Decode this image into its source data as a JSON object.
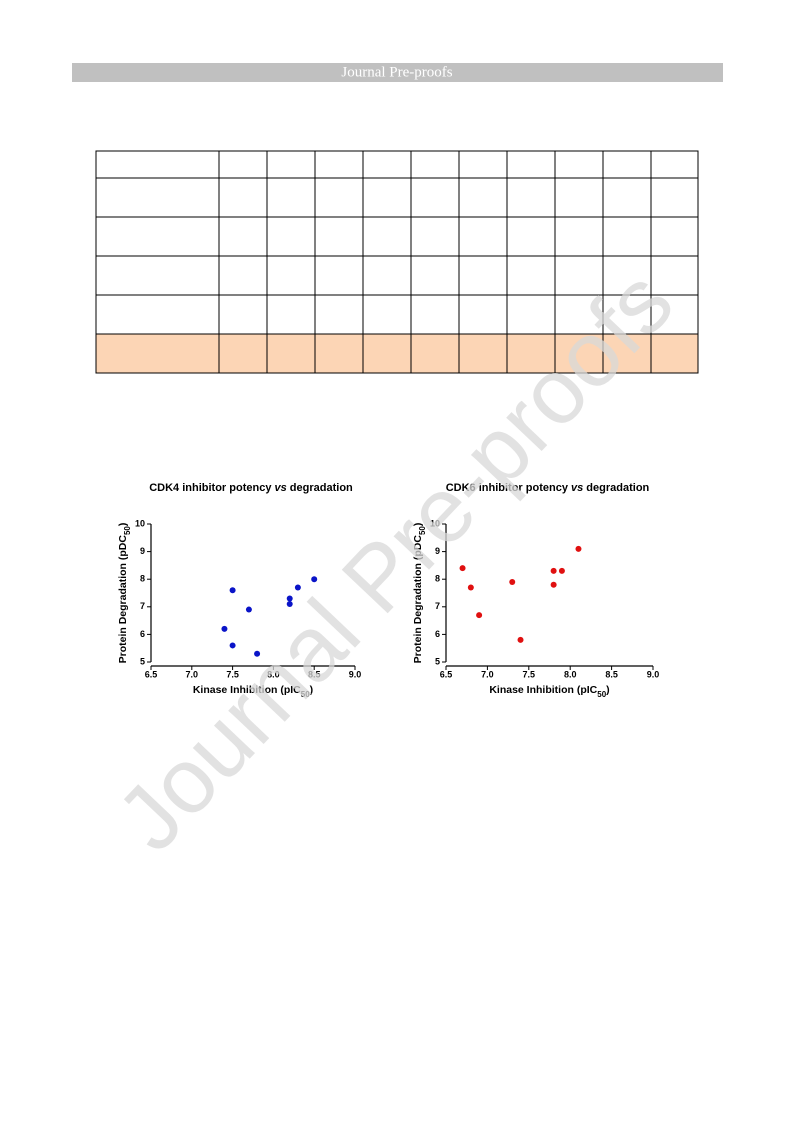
{
  "header": {
    "title": "Journal Pre-proofs"
  },
  "watermark": "Journal Pre-proofs",
  "chart_data": [
    {
      "type": "scatter",
      "title": [
        "CDK4 inhibitor potency ",
        "vs",
        " degradation"
      ],
      "xlabel": [
        "Kinase Inhibition (pIC",
        "50",
        ")"
      ],
      "ylabel": [
        "Protein Degradation (pDC",
        "50",
        ")"
      ],
      "x": [
        7.5,
        7.4,
        7.5,
        7.7,
        7.8,
        8.2,
        8.2,
        8.3,
        8.5
      ],
      "values": [
        7.6,
        6.2,
        5.6,
        6.9,
        5.3,
        7.3,
        7.1,
        7.7,
        8.0
      ],
      "color": "#0a14c8",
      "xlim": [
        6.5,
        9.0
      ],
      "xticks": [
        6.5,
        {
          "value": 7,
          "label": "7.0"
        },
        7.5,
        {
          "value": 8,
          "label": "8.0"
        },
        8.5,
        {
          "value": 9,
          "label": "9.0"
        }
      ],
      "ylim": [
        5,
        10
      ],
      "yticks": [
        5,
        6,
        7,
        8,
        9,
        10
      ]
    },
    {
      "type": "scatter",
      "title": [
        "CDK6 inhibitor potency ",
        "vs",
        " degradation"
      ],
      "xlabel": [
        "Kinase Inhibition (pIC",
        "50",
        ")"
      ],
      "ylabel": [
        "Protein Degradation (pDC",
        "50",
        ")"
      ],
      "x": [
        6.7,
        6.8,
        6.9,
        7.3,
        7.4,
        7.8,
        7.8,
        7.9,
        8.1
      ],
      "values": [
        8.4,
        7.7,
        6.7,
        7.9,
        5.8,
        8.3,
        7.8,
        8.3,
        9.1
      ],
      "color": "#e01010",
      "xlim": [
        6.5,
        9.0
      ],
      "xticks": [
        6.5,
        {
          "value": 7,
          "label": "7.0"
        },
        7.5,
        {
          "value": 8,
          "label": "8.0"
        },
        8.5,
        {
          "value": 9,
          "label": "9.0"
        }
      ],
      "ylim": [
        5,
        10
      ],
      "yticks": [
        5,
        6,
        7,
        8,
        9,
        10
      ]
    }
  ]
}
